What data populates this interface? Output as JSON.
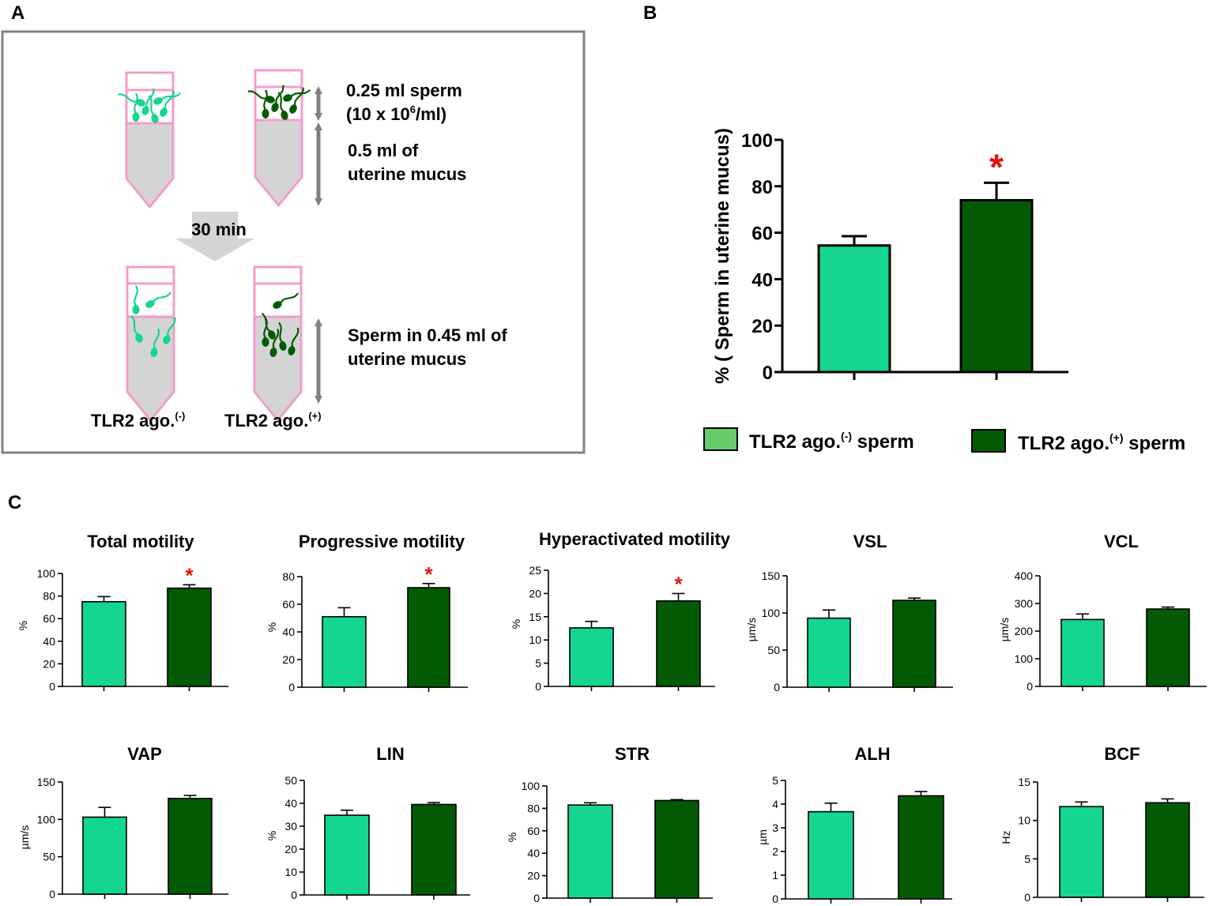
{
  "colors": {
    "light_bar": "#14d68f",
    "dark_bar": "#045a04",
    "legend_light": "#66cc6b",
    "legend_dark": "#045a04",
    "tube_border": "#f49ccb",
    "mucus_fill": "#d4d4d4",
    "star": "#e8130e",
    "arrow": "#808080"
  },
  "panel_a": {
    "letter": "A",
    "top_label_1": "0.25 ml sperm",
    "top_label_2_pre": "(10 x 10",
    "top_label_2_sup": "6",
    "top_label_2_post": "/ml)",
    "mid_label_1": "0.5 ml of",
    "mid_label_2": "uterine mucus",
    "time_label": "30 min",
    "bottom_label_1": "Sperm in 0.45 ml of",
    "bottom_label_2": "uterine mucus",
    "tube_left_label": "TLR2 ago.",
    "tube_left_sup": "(-)",
    "tube_right_label": "TLR2 ago.",
    "tube_right_sup": "(+)"
  },
  "panel_b": {
    "letter": "B",
    "legend": {
      "light_label": "TLR2 ago.",
      "light_sup": "(-)",
      "light_post": " sperm",
      "dark_label": "TLR2 ago.",
      "dark_sup": "(+)",
      "dark_post": " sperm"
    }
  },
  "panel_c": {
    "letter": "C"
  },
  "chart_data": [
    {
      "id": "uterine",
      "type": "bar",
      "title": "",
      "ylabel": "% ( Sperm in uterine mucus)",
      "categories": [
        "TLR2 ago.(-) sperm",
        "TLR2 ago.(+) sperm"
      ],
      "values": [
        54.5,
        74
      ],
      "errors": [
        4,
        7.5
      ],
      "ylim": [
        0,
        100
      ],
      "yticks": [
        "0",
        "20",
        "40",
        "60",
        "80",
        "100"
      ],
      "significance": [
        "",
        "*"
      ]
    },
    {
      "id": "total",
      "type": "bar",
      "title": "Total motility",
      "ylabel": "%",
      "values": [
        75,
        87
      ],
      "errors": [
        4.5,
        3
      ],
      "ylim": [
        0,
        100
      ],
      "yticks": [
        "0",
        "20",
        "40",
        "60",
        "80",
        "100"
      ],
      "significance": [
        "",
        "*"
      ]
    },
    {
      "id": "progressive",
      "type": "bar",
      "title": "Progressive motility",
      "ylabel": "%",
      "values": [
        51,
        72
      ],
      "errors": [
        6.5,
        3
      ],
      "ylim": [
        0,
        80
      ],
      "yticks": [
        "0",
        "20",
        "40",
        "60",
        "80"
      ],
      "significance": [
        "",
        "*"
      ]
    },
    {
      "id": "hyper",
      "type": "bar",
      "title": "Hyperactivated motility",
      "ylabel": "%",
      "values": [
        12.6,
        18.4
      ],
      "errors": [
        1.4,
        1.6
      ],
      "ylim": [
        0,
        25
      ],
      "yticks": [
        "0",
        "5",
        "10",
        "15",
        "20",
        "25"
      ],
      "significance": [
        "",
        "*"
      ]
    },
    {
      "id": "vsl",
      "type": "bar",
      "title": "VSL",
      "ylabel": "µm/s",
      "values": [
        93,
        117
      ],
      "errors": [
        11,
        3
      ],
      "ylim": [
        0,
        150
      ],
      "yticks": [
        "0",
        "50",
        "100",
        "150"
      ],
      "significance": [
        "",
        ""
      ]
    },
    {
      "id": "vcl",
      "type": "bar",
      "title": "VCL",
      "ylabel": "µm/s",
      "values": [
        242,
        280
      ],
      "errors": [
        20,
        7
      ],
      "ylim": [
        0,
        400
      ],
      "yticks": [
        "0",
        "100",
        "200",
        "300",
        "400"
      ],
      "significance": [
        "",
        ""
      ]
    },
    {
      "id": "vap",
      "type": "bar",
      "title": "VAP",
      "ylabel": "µm/s",
      "values": [
        103,
        128
      ],
      "errors": [
        13,
        4
      ],
      "ylim": [
        0,
        150
      ],
      "yticks": [
        "0",
        "50",
        "100",
        "150"
      ],
      "significance": [
        "",
        ""
      ]
    },
    {
      "id": "lin",
      "type": "bar",
      "title": "LIN",
      "ylabel": "%",
      "values": [
        34.8,
        39.5
      ],
      "errors": [
        2.2,
        0.8
      ],
      "ylim": [
        0,
        50
      ],
      "yticks": [
        "0",
        "10",
        "20",
        "30",
        "40",
        "50"
      ],
      "significance": [
        "",
        ""
      ]
    },
    {
      "id": "str",
      "type": "bar",
      "title": "STR",
      "ylabel": "%",
      "values": [
        83,
        87
      ],
      "errors": [
        2,
        0.8
      ],
      "ylim": [
        0,
        100
      ],
      "yticks": [
        "0",
        "20",
        "40",
        "60",
        "80",
        "100"
      ],
      "significance": [
        "",
        ""
      ]
    },
    {
      "id": "alh",
      "type": "bar",
      "title": "ALH",
      "ylabel": "µm",
      "values": [
        3.68,
        4.35
      ],
      "errors": [
        0.36,
        0.18
      ],
      "ylim": [
        0,
        5
      ],
      "yticks": [
        "0",
        "1",
        "2",
        "3",
        "4",
        "5"
      ],
      "significance": [
        "",
        ""
      ]
    },
    {
      "id": "bcf",
      "type": "bar",
      "title": "BCF",
      "ylabel": "Hz",
      "values": [
        11.8,
        12.3
      ],
      "errors": [
        0.6,
        0.5
      ],
      "ylim": [
        0,
        15
      ],
      "yticks": [
        "0",
        "5",
        "10",
        "15"
      ],
      "significance": [
        "",
        ""
      ]
    }
  ]
}
